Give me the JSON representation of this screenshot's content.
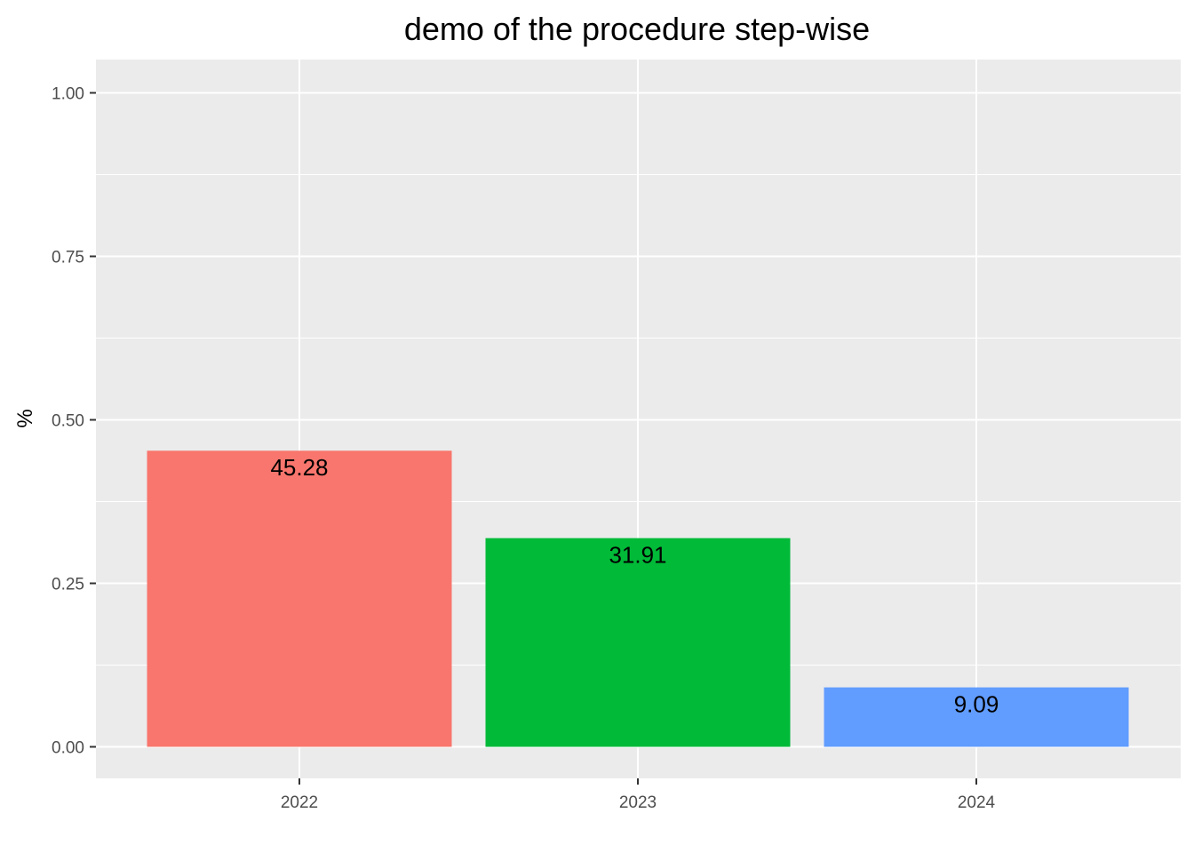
{
  "chart_data": {
    "type": "bar",
    "title": "demo of the procedure step-wise",
    "xlabel": "",
    "ylabel": "%",
    "categories": [
      "2022",
      "2023",
      "2024"
    ],
    "values": [
      0.4528,
      0.3191,
      0.0909
    ],
    "data_labels": [
      "45.28",
      "31.91",
      "9.09"
    ],
    "colors": [
      "#F8766D",
      "#00BA38",
      "#619CFF"
    ],
    "ylim": [
      -0.05,
      1.05
    ],
    "y_ticks": [
      0,
      0.25,
      0.5,
      0.75,
      1.0
    ],
    "y_tick_labels": [
      "0.00",
      "0.25",
      "0.50",
      "0.75",
      "1.00"
    ],
    "grid": true,
    "legend": "none",
    "panel_background": "#EBEBEB",
    "gridline_color": "#FFFFFF"
  }
}
